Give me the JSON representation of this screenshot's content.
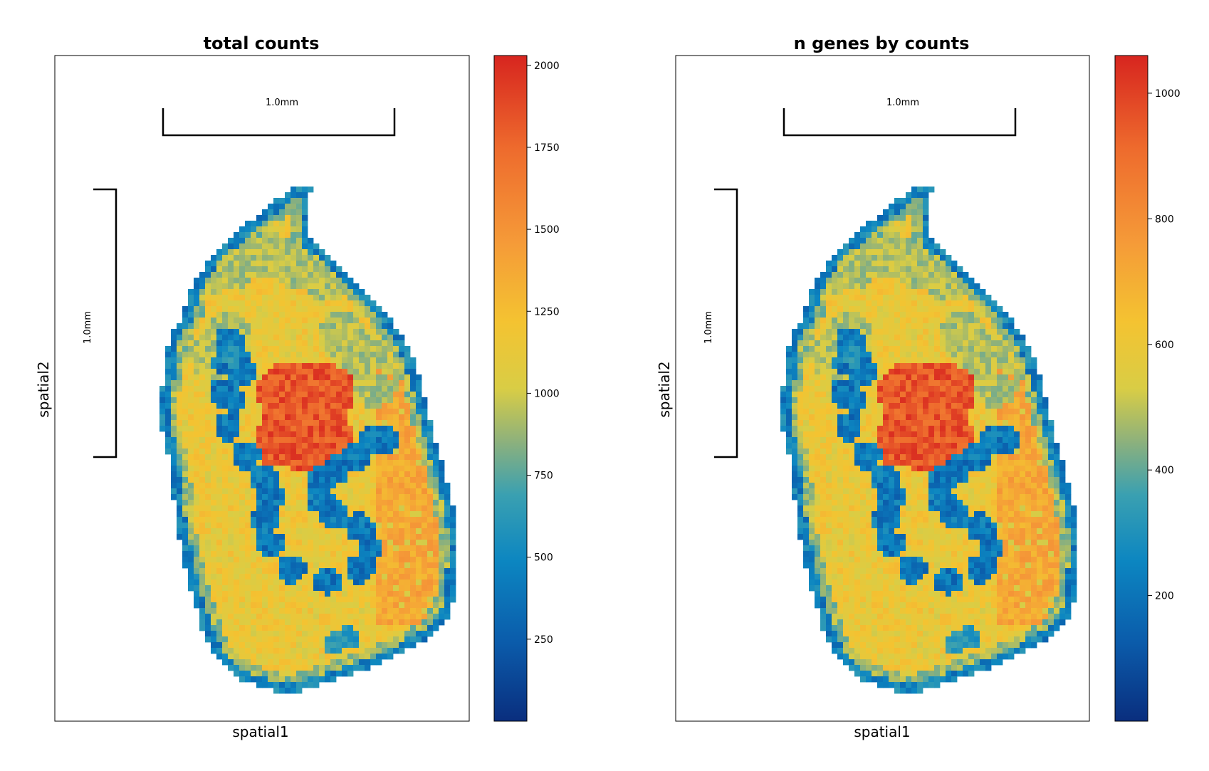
{
  "chart_data": [
    {
      "type": "heatmap",
      "title": "total counts",
      "xlabel": "spatial1",
      "ylabel": "spatial2",
      "scalebar_label": "1.0mm",
      "colorbar": {
        "min": 0,
        "max": 2030,
        "ticks": [
          250,
          500,
          750,
          1000,
          1250,
          1500,
          1750,
          2000
        ],
        "tick_labels": [
          "250",
          "500",
          "750",
          "1000",
          "1250",
          "1500",
          "1750",
          "2000"
        ]
      }
    },
    {
      "type": "heatmap",
      "title": "n genes by counts",
      "xlabel": "spatial1",
      "ylabel": "spatial2",
      "scalebar_label": "1.0mm",
      "colorbar": {
        "min": 0,
        "max": 1060,
        "ticks": [
          200,
          400,
          600,
          800,
          1000
        ],
        "tick_labels": [
          "200",
          "400",
          "600",
          "800",
          "1000"
        ]
      }
    }
  ],
  "colormap": [
    "#0a2e7e",
    "#0b5cab",
    "#0c86c1",
    "#3aa0b1",
    "#8db17c",
    "#d9cd45",
    "#f4c331",
    "#f59a38",
    "#ee6b2d",
    "#d7251f"
  ]
}
